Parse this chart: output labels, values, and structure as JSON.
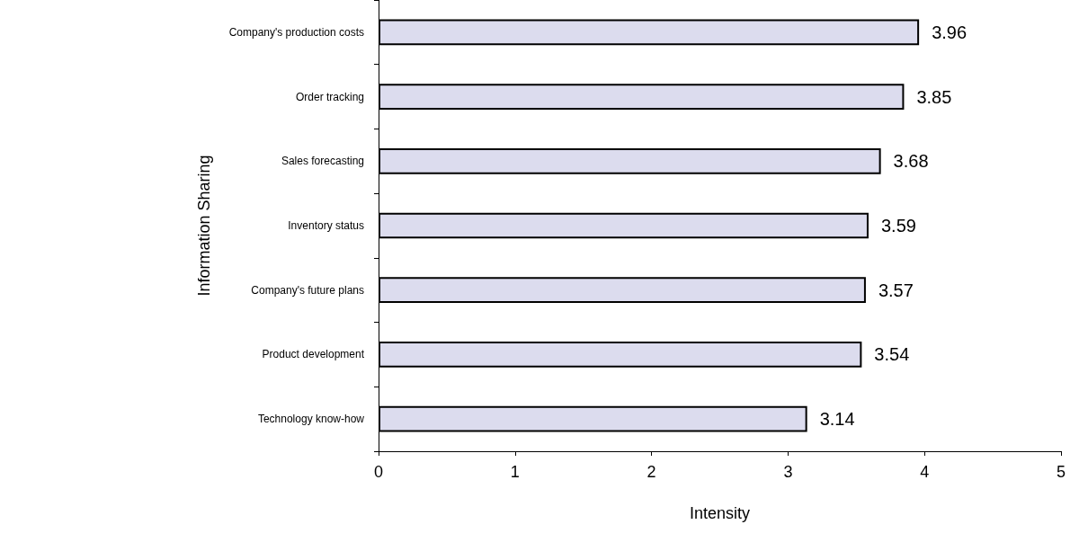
{
  "chart_data": {
    "type": "bar",
    "orientation": "horizontal",
    "xlabel": "Intensity",
    "ylabel": "Information Sharing",
    "categories": [
      "Company's production costs",
      "Order tracking",
      "Sales forecasting",
      "Inventory status",
      "Company's future plans",
      "Product development",
      "Technology know-how"
    ],
    "values": [
      3.96,
      3.85,
      3.68,
      3.59,
      3.57,
      3.54,
      3.14
    ],
    "color": "#dcdcee",
    "xlim": [
      0,
      5
    ],
    "xticks": [
      0,
      1,
      2,
      3,
      4,
      5
    ],
    "data_labels": true,
    "grid": false
  }
}
